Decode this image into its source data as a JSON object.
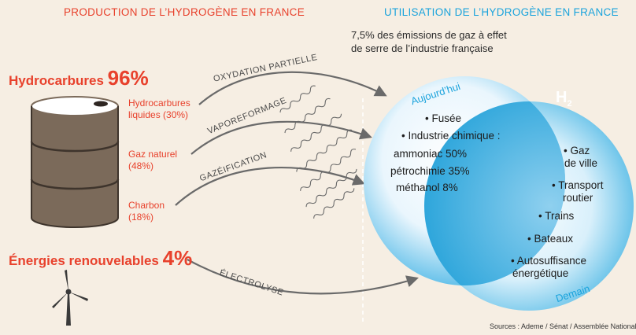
{
  "headers": {
    "production": "PRODUCTION DE L’HYDROGÈNE EN FRANCE",
    "utilisation": "UTILISATION DE L’HYDROGÈNE EN FRANCE"
  },
  "note": {
    "line1": "7,5% des émissions de gaz à effet",
    "line2": "de serre de l’industrie française"
  },
  "sources_left": {
    "hydrocarbures": {
      "label": "Hydrocarbures",
      "pct": "96%"
    },
    "renouvelables": {
      "label": "Énergies renouvelables",
      "pct": "4%"
    }
  },
  "sub_sources": [
    {
      "line1": "Hydrocarbures",
      "line2": "liquides (30%)"
    },
    {
      "line1": "Gaz naturel",
      "line2": "(48%)"
    },
    {
      "line1": "Charbon",
      "line2": "(18%)"
    }
  ],
  "processes": {
    "oxydation": "OXYDATION PARTIELLE",
    "vaporeformage": "VAPOREFORMAGE",
    "gazeification": "GAZÉIFICATION",
    "electrolyse": "ÉLECTROLYSE"
  },
  "bubbles": {
    "h2_symbol": "H",
    "h2_sub": "2",
    "today_label": "Aujourd’hui",
    "future_label": "Demain"
  },
  "uses_today": {
    "fusee": "• Fusée",
    "chimie": "• Industrie chimique :",
    "ammoniac": "ammoniac 50%",
    "petrochimie": "pétrochimie 35%",
    "methanol": "méthanol 8%"
  },
  "uses_future": {
    "gaz_1": "• Gaz",
    "gaz_2": "de ville",
    "transport_1": "• Transport",
    "transport_2": "routier",
    "trains": "• Trains",
    "bateaux": "• Bateaux",
    "auto_1": "• Autosuffisance",
    "auto_2": "énergétique"
  },
  "footer": "Sources : Ademe / Sénat / Assemblée Nationale",
  "colors": {
    "red": "#e8412c",
    "blue": "#1aa3dc",
    "barrel": "#7b6a5a",
    "background": "#f6eee3"
  }
}
